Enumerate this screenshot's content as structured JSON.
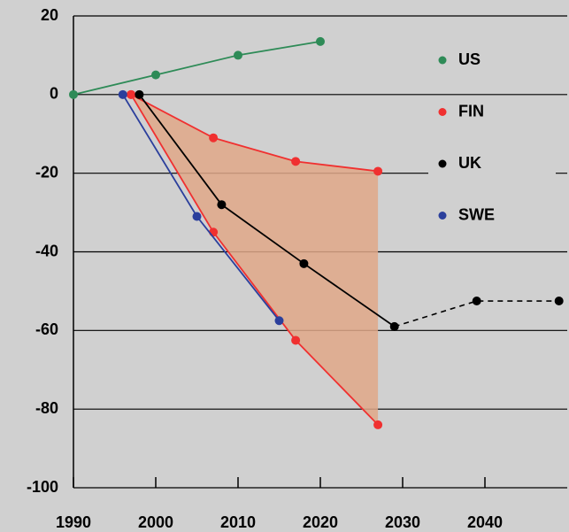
{
  "chart_data": {
    "type": "line",
    "xlim": [
      1990,
      2050
    ],
    "xticks": [
      1990,
      2000,
      2010,
      2020,
      2030,
      2040
    ],
    "ylim": [
      -100,
      20
    ],
    "yticks": [
      20,
      0,
      -20,
      -40,
      -60,
      -80,
      -100
    ],
    "grid": true,
    "legend": "upper right",
    "series": [
      {
        "name": "US",
        "color": "#2e8b57",
        "x": [
          1990,
          2000,
          2010,
          2020
        ],
        "values": [
          0,
          5,
          10,
          13.5
        ]
      },
      {
        "name": "FIN",
        "color": "#f03030",
        "fill": "#e0a888",
        "x": [
          1997,
          2007,
          2017,
          2027
        ],
        "values": [
          0,
          -11,
          -17,
          -19.5
        ],
        "low": [
          0,
          -35,
          -62.5,
          -84
        ]
      },
      {
        "name": "UK",
        "color": "#000000",
        "x": [
          1998,
          2008,
          2018,
          2029,
          2039,
          2049
        ],
        "values": [
          0,
          -28,
          -43,
          -59,
          -52.5,
          -52.5
        ],
        "dashed_from": 3
      },
      {
        "name": "SWE",
        "color": "#2b3f9c",
        "x": [
          1996,
          2005,
          2015
        ],
        "values": [
          0,
          -31,
          -57.5
        ]
      }
    ]
  }
}
